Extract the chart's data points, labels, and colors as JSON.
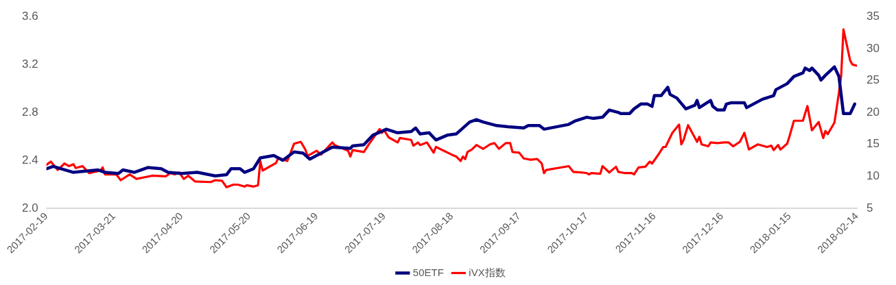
{
  "chart_data": {
    "type": "line",
    "legend": "bottom",
    "grid": false,
    "marker": "none",
    "line_style": "solid",
    "xlim": [
      "2017-02-19",
      "2018-02-14"
    ],
    "xticks": [
      "2017-02-19",
      "2017-03-21",
      "2017-04-20",
      "2017-05-20",
      "2017-06-19",
      "2017-07-19",
      "2017-08-18",
      "2017-09-17",
      "2017-10-17",
      "2017-11-16",
      "2017-12-16",
      "2018-01-15",
      "2018-02-14"
    ],
    "ylim": [
      2,
      3.6
    ],
    "yticks": [
      {
        "value": 2,
        "label": "2.0"
      },
      2.4,
      2.8,
      3.2,
      3.6
    ],
    "y2lim": [
      5,
      35
    ],
    "y2ticks": [
      5,
      10,
      15,
      20,
      25,
      30,
      35
    ],
    "series": [
      {
        "name": "50ETF",
        "color": "#000080",
        "x": [
          "2017-02-19",
          "2017-02-22",
          "2017-03-03",
          "2017-03-14",
          "2017-03-17",
          "2017-03-23",
          "2017-03-25",
          "2017-03-30",
          "2017-04-05",
          "2017-04-11",
          "2017-04-14",
          "2017-04-20",
          "2017-04-27",
          "2017-05-05",
          "2017-05-10",
          "2017-05-12",
          "2017-05-16",
          "2017-05-18",
          "2017-05-22",
          "2017-05-25",
          "2017-05-31",
          "2017-06-04",
          "2017-06-09",
          "2017-06-13",
          "2017-06-16",
          "2017-06-20",
          "2017-06-26",
          "2017-07-04",
          "2017-07-05",
          "2017-07-10",
          "2017-07-14",
          "2017-07-20",
          "2017-07-25",
          "2017-07-31",
          "2017-08-02",
          "2017-08-04",
          "2017-08-08",
          "2017-08-11",
          "2017-08-16",
          "2017-08-20",
          "2017-08-26",
          "2017-08-29",
          "2017-09-01",
          "2017-09-07",
          "2017-09-12",
          "2017-09-19",
          "2017-09-21",
          "2017-09-26",
          "2017-09-28",
          "2017-10-09",
          "2017-10-12",
          "2017-10-17",
          "2017-10-20",
          "2017-10-24",
          "2017-10-27",
          "2017-10-31",
          "2017-11-01",
          "2017-11-05",
          "2017-11-07",
          "2017-11-10",
          "2017-11-13",
          "2017-11-15",
          "2017-11-16",
          "2017-11-19",
          "2017-11-22",
          "2017-11-23",
          "2017-11-26",
          "2017-11-30",
          "2017-12-04",
          "2017-12-05",
          "2017-12-06",
          "2017-12-11",
          "2017-12-12",
          "2017-12-14",
          "2017-12-17",
          "2017-12-18",
          "2017-12-20",
          "2017-12-26",
          "2017-12-27",
          "2017-12-31",
          "2018-01-03",
          "2018-01-08",
          "2018-01-09",
          "2018-01-14",
          "2018-01-17",
          "2018-01-21",
          "2018-01-22",
          "2018-01-24",
          "2018-01-25",
          "2018-01-28",
          "2018-01-29",
          "2018-01-31",
          "2018-02-04",
          "2018-02-06",
          "2018-02-08",
          "2018-02-11",
          "2018-02-13"
        ],
        "values": [
          2.33,
          2.35,
          2.3,
          2.32,
          2.3,
          2.29,
          2.32,
          2.3,
          2.34,
          2.33,
          2.3,
          2.29,
          2.3,
          2.27,
          2.28,
          2.33,
          2.33,
          2.3,
          2.33,
          2.42,
          2.44,
          2.4,
          2.47,
          2.46,
          2.41,
          2.45,
          2.51,
          2.5,
          2.52,
          2.53,
          2.61,
          2.66,
          2.63,
          2.64,
          2.67,
          2.62,
          2.63,
          2.57,
          2.61,
          2.62,
          2.72,
          2.74,
          2.72,
          2.69,
          2.68,
          2.67,
          2.69,
          2.69,
          2.66,
          2.7,
          2.73,
          2.76,
          2.75,
          2.76,
          2.82,
          2.8,
          2.79,
          2.79,
          2.83,
          2.87,
          2.87,
          2.85,
          2.94,
          2.94,
          3.01,
          2.95,
          2.92,
          2.83,
          2.86,
          2.9,
          2.84,
          2.9,
          2.85,
          2.82,
          2.82,
          2.87,
          2.88,
          2.88,
          2.84,
          2.88,
          2.91,
          2.94,
          2.99,
          3.04,
          3.1,
          3.13,
          3.17,
          3.15,
          3.17,
          3.11,
          3.07,
          3.11,
          3.18,
          3.1,
          2.79,
          2.79,
          2.87
        ]
      },
      {
        "name": "iVX指数",
        "color": "#ff0000",
        "axis": "y2",
        "x": [
          "2017-02-19",
          "2017-02-21",
          "2017-02-24",
          "2017-02-27",
          "2017-03-01",
          "2017-03-03",
          "2017-03-04",
          "2017-03-07",
          "2017-03-10",
          "2017-03-15",
          "2017-03-16",
          "2017-03-17",
          "2017-03-22",
          "2017-03-24",
          "2017-03-28",
          "2017-03-31",
          "2017-04-07",
          "2017-04-13",
          "2017-04-15",
          "2017-04-17",
          "2017-04-19",
          "2017-04-21",
          "2017-04-23",
          "2017-04-26",
          "2017-05-03",
          "2017-05-05",
          "2017-05-08",
          "2017-05-10",
          "2017-05-13",
          "2017-05-15",
          "2017-05-18",
          "2017-05-19",
          "2017-05-22",
          "2017-05-24",
          "2017-05-25",
          "2017-05-26",
          "2017-06-01",
          "2017-06-02",
          "2017-06-06",
          "2017-06-09",
          "2017-06-12",
          "2017-06-14",
          "2017-06-15",
          "2017-06-19",
          "2017-06-21",
          "2017-06-26",
          "2017-06-27",
          "2017-07-03",
          "2017-07-04",
          "2017-07-05",
          "2017-07-10",
          "2017-07-12",
          "2017-07-17",
          "2017-07-18",
          "2017-07-19",
          "2017-07-21",
          "2017-07-25",
          "2017-07-26",
          "2017-07-31",
          "2017-08-01",
          "2017-08-03",
          "2017-08-04",
          "2017-08-07",
          "2017-08-10",
          "2017-08-11",
          "2017-08-18",
          "2017-08-20",
          "2017-08-22",
          "2017-08-23",
          "2017-08-24",
          "2017-08-25",
          "2017-08-27",
          "2017-08-29",
          "2017-09-01",
          "2017-09-04",
          "2017-09-06",
          "2017-09-08",
          "2017-09-11",
          "2017-09-13",
          "2017-09-14",
          "2017-09-17",
          "2017-09-19",
          "2017-09-22",
          "2017-09-25",
          "2017-09-27",
          "2017-09-28",
          "2017-09-29",
          "2017-10-09",
          "2017-10-11",
          "2017-10-15",
          "2017-10-17",
          "2017-10-18",
          "2017-10-19",
          "2017-10-23",
          "2017-10-24",
          "2017-10-27",
          "2017-10-30",
          "2017-10-31",
          "2017-11-03",
          "2017-11-06",
          "2017-11-07",
          "2017-11-09",
          "2017-11-12",
          "2017-11-14",
          "2017-11-15",
          "2017-11-18",
          "2017-11-20",
          "2017-11-21",
          "2017-11-24",
          "2017-11-27",
          "2017-11-28",
          "2017-11-29",
          "2017-12-01",
          "2017-12-05",
          "2017-12-06",
          "2017-12-07",
          "2017-12-10",
          "2017-12-11",
          "2017-12-14",
          "2017-12-17",
          "2017-12-19",
          "2017-12-21",
          "2017-12-24",
          "2017-12-26",
          "2017-12-28",
          "2018-01-01",
          "2018-01-05",
          "2018-01-07",
          "2018-01-08",
          "2018-01-10",
          "2018-01-11",
          "2018-01-14",
          "2018-01-15",
          "2018-01-17",
          "2018-01-21",
          "2018-01-23",
          "2018-01-25",
          "2018-01-28",
          "2018-01-30",
          "2018-01-31",
          "2018-02-01",
          "2018-02-04",
          "2018-02-06",
          "2018-02-07",
          "2018-02-08",
          "2018-02-11",
          "2018-02-12",
          "2018-02-14"
        ],
        "values": [
          11.8,
          12.3,
          11.0,
          12.0,
          11.6,
          11.9,
          11.3,
          11.6,
          10.5,
          10.9,
          11.4,
          10.3,
          10.3,
          9.4,
          10.3,
          9.6,
          10.1,
          10.0,
          10.5,
          10.3,
          10.6,
          9.6,
          10.1,
          9.2,
          9.1,
          9.4,
          9.3,
          8.3,
          8.7,
          8.7,
          8.4,
          8.6,
          8.4,
          8.6,
          12.4,
          10.9,
          12.1,
          12.9,
          12.4,
          15.1,
          15.4,
          14.2,
          13.2,
          14.0,
          13.4,
          15.3,
          14.9,
          14.0,
          13.1,
          14.1,
          13.8,
          14.9,
          17.4,
          16.8,
          17.2,
          16.1,
          15.3,
          16.0,
          15.7,
          14.8,
          15.3,
          14.9,
          15.3,
          13.7,
          14.6,
          13.4,
          13.1,
          12.4,
          13.1,
          12.7,
          13.8,
          14.2,
          14.9,
          14.3,
          15.0,
          15.2,
          14.3,
          15.2,
          15.2,
          13.8,
          13.7,
          12.8,
          12.6,
          12.7,
          12.0,
          10.5,
          11.0,
          11.6,
          10.7,
          10.6,
          10.5,
          10.3,
          10.5,
          10.4,
          11.6,
          10.6,
          11.5,
          10.7,
          10.5,
          10.5,
          10.3,
          11.4,
          11.5,
          12.3,
          12.0,
          13.5,
          14.6,
          14.6,
          16.8,
          18.1,
          15.0,
          15.7,
          18.0,
          15.4,
          16.2,
          15.0,
          14.7,
          15.3,
          15.2,
          15.3,
          15.3,
          14.7,
          15.4,
          16.8,
          14.2,
          15.0,
          14.6,
          14.8,
          14.1,
          14.9,
          14.2,
          15.1,
          16.2,
          18.7,
          18.7,
          21.0,
          17.2,
          18.5,
          16.0,
          17.1,
          16.6,
          18.4,
          23.1,
          25.8,
          33.0,
          28.1,
          27.5,
          27.3
        ]
      }
    ]
  }
}
